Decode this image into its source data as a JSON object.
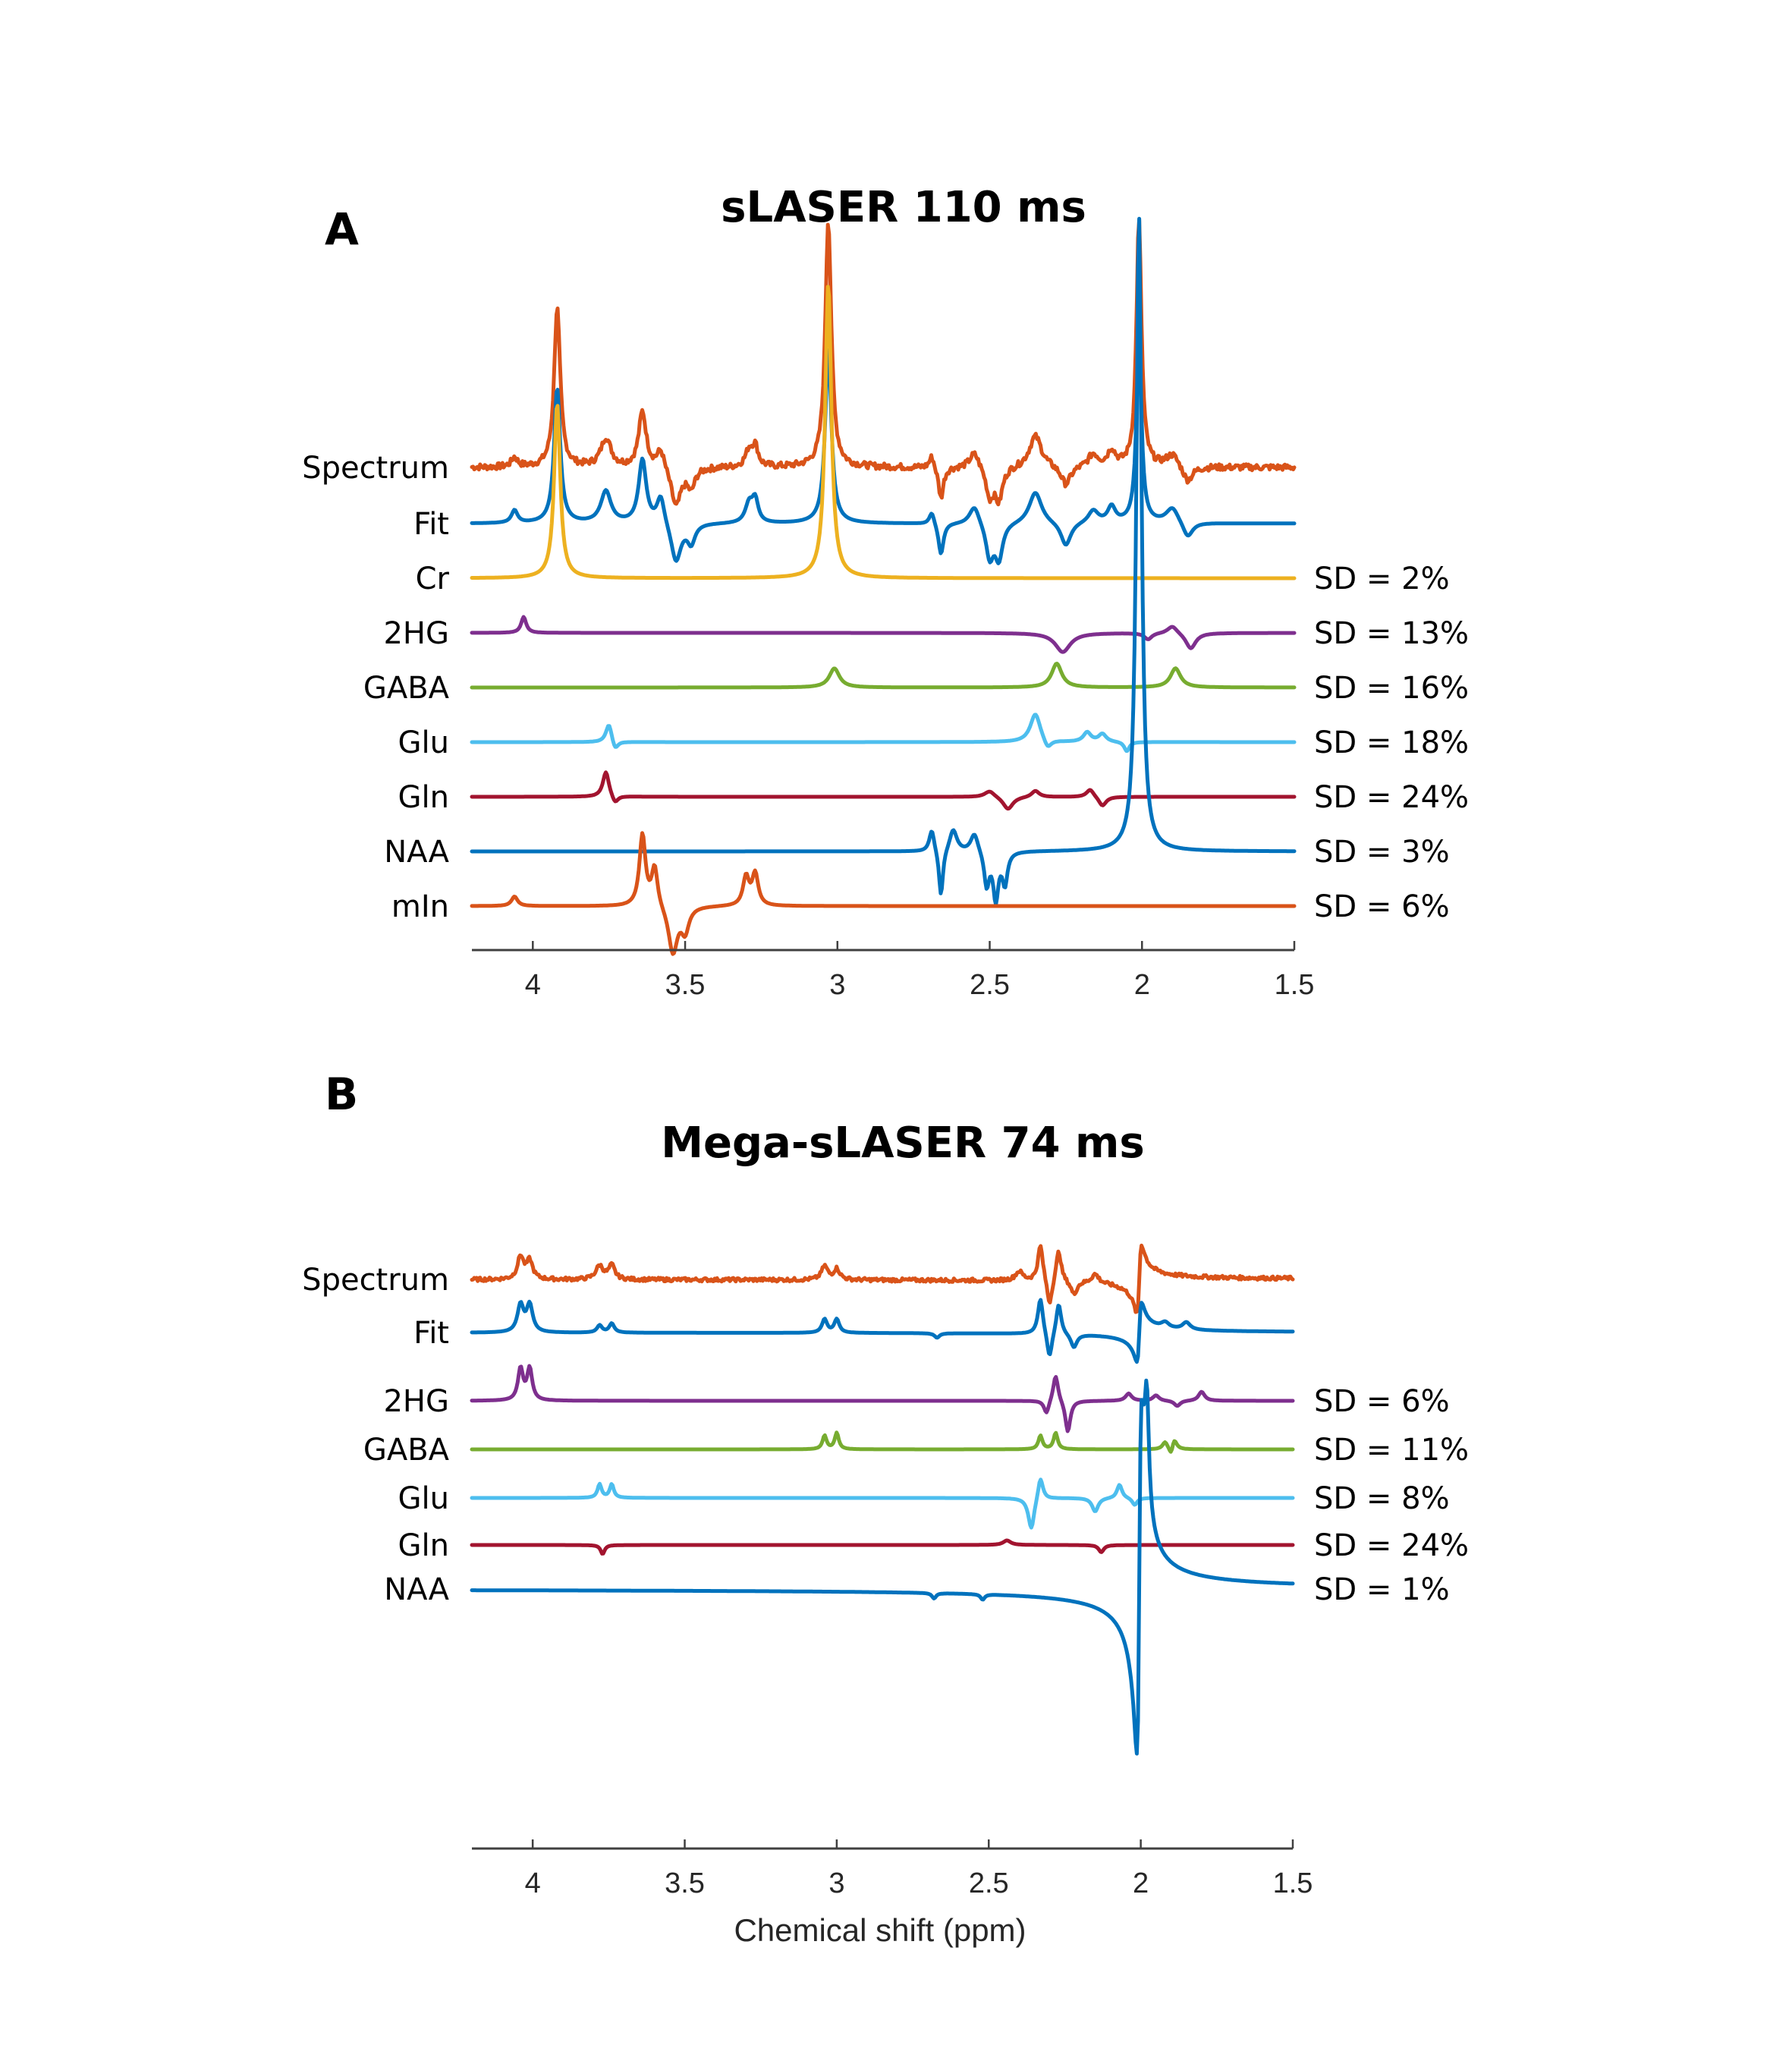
{
  "chart_data": [
    {
      "panel": "A",
      "type": "line",
      "title": "sLASER 110 ms",
      "xlabel": "",
      "xlim": [
        4.2,
        1.5
      ],
      "x_reversed": true,
      "xticks": [
        4,
        3.5,
        3,
        2.5,
        2,
        1.5
      ],
      "xtick_labels": [
        "4",
        "3.5",
        "3",
        "2.5",
        "2",
        "1.5"
      ],
      "grid": false,
      "series": [
        {
          "name": "Spectrum",
          "color": "#D95319",
          "sd": "",
          "noise": true,
          "peaks": [
            [
              4.06,
              0.06,
              0.012
            ],
            [
              3.92,
              1.0,
              0.012
            ],
            [
              3.76,
              0.18,
              0.02
            ],
            [
              3.64,
              0.35,
              0.015
            ],
            [
              3.58,
              0.12,
              0.015
            ],
            [
              3.53,
              -0.25,
              0.02
            ],
            [
              3.48,
              -0.12,
              0.015
            ],
            [
              3.29,
              0.1,
              0.015
            ],
            [
              3.27,
              0.12,
              0.012
            ],
            [
              3.03,
              1.55,
              0.012
            ],
            [
              2.69,
              0.08,
              0.01
            ],
            [
              2.66,
              -0.2,
              0.01
            ],
            [
              2.55,
              0.1,
              0.02
            ],
            [
              2.5,
              -0.18,
              0.015
            ],
            [
              2.47,
              -0.2,
              0.015
            ],
            [
              2.35,
              0.2,
              0.025
            ],
            [
              2.25,
              -0.12,
              0.02
            ],
            [
              2.16,
              0.08,
              0.02
            ],
            [
              2.1,
              0.1,
              0.015
            ],
            [
              2.01,
              1.55,
              0.01
            ],
            [
              1.9,
              0.08,
              0.025
            ],
            [
              1.85,
              -0.1,
              0.02
            ]
          ]
        },
        {
          "name": "Fit",
          "color": "#0072BD",
          "sd": "",
          "noise": false,
          "peaks": [
            [
              4.06,
              0.08,
              0.012
            ],
            [
              3.92,
              0.85,
              0.012
            ],
            [
              3.76,
              0.2,
              0.02
            ],
            [
              3.64,
              0.4,
              0.015
            ],
            [
              3.58,
              0.18,
              0.015
            ],
            [
              3.53,
              -0.25,
              0.02
            ],
            [
              3.48,
              -0.12,
              0.015
            ],
            [
              3.29,
              0.12,
              0.015
            ],
            [
              3.27,
              0.14,
              0.012
            ],
            [
              3.03,
              1.1,
              0.012
            ],
            [
              2.69,
              0.08,
              0.01
            ],
            [
              2.66,
              -0.2,
              0.01
            ],
            [
              2.55,
              0.12,
              0.02
            ],
            [
              2.5,
              -0.22,
              0.015
            ],
            [
              2.47,
              -0.22,
              0.015
            ],
            [
              2.35,
              0.2,
              0.025
            ],
            [
              2.25,
              -0.15,
              0.02
            ],
            [
              2.16,
              0.08,
              0.02
            ],
            [
              2.1,
              0.1,
              0.015
            ],
            [
              2.01,
              1.15,
              0.01
            ],
            [
              1.9,
              0.1,
              0.025
            ],
            [
              1.85,
              -0.1,
              0.02
            ]
          ]
        },
        {
          "name": "Cr",
          "color": "#EDB120",
          "sd": "SD = 2%",
          "noise": false,
          "peaks": [
            [
              3.92,
              1.1,
              0.012
            ],
            [
              3.03,
              1.85,
              0.012
            ]
          ]
        },
        {
          "name": "2HG",
          "color": "#7E2F8E",
          "sd": "SD = 13%",
          "noise": false,
          "peaks": [
            [
              4.03,
              0.1,
              0.01
            ],
            [
              2.26,
              -0.12,
              0.03
            ],
            [
              1.98,
              -0.04,
              0.015
            ],
            [
              1.9,
              0.05,
              0.02
            ],
            [
              1.84,
              -0.1,
              0.02
            ]
          ]
        },
        {
          "name": "GABA",
          "color": "#77AC30",
          "sd": "SD = 16%",
          "noise": false,
          "peaks": [
            [
              3.01,
              0.12,
              0.02
            ],
            [
              2.28,
              0.15,
              0.02
            ],
            [
              1.89,
              0.12,
              0.02
            ]
          ]
        },
        {
          "name": "Glu",
          "color": "#4DBEEE",
          "sd": "SD = 18%",
          "noise": false,
          "peaks": [
            [
              3.75,
              0.12,
              0.012
            ],
            [
              3.73,
              -0.06,
              0.012
            ],
            [
              2.35,
              0.18,
              0.02
            ],
            [
              2.31,
              -0.06,
              0.015
            ],
            [
              2.18,
              0.06,
              0.015
            ],
            [
              2.13,
              0.05,
              0.015
            ],
            [
              2.05,
              -0.06,
              0.01
            ]
          ]
        },
        {
          "name": "Gln",
          "color": "#A2142F",
          "sd": "SD = 24%",
          "noise": false,
          "peaks": [
            [
              3.76,
              0.16,
              0.012
            ],
            [
              3.73,
              -0.05,
              0.012
            ],
            [
              2.5,
              0.04,
              0.02
            ],
            [
              2.44,
              -0.08,
              0.02
            ],
            [
              2.35,
              0.04,
              0.015
            ],
            [
              2.17,
              0.05,
              0.015
            ],
            [
              2.13,
              -0.06,
              0.015
            ]
          ]
        },
        {
          "name": "NAA",
          "color": "#0072BD",
          "sd": "SD = 3%",
          "noise": false,
          "peaks": [
            [
              2.69,
              0.14,
              0.01
            ],
            [
              2.66,
              -0.3,
              0.008
            ],
            [
              2.62,
              0.14,
              0.015
            ],
            [
              2.55,
              0.12,
              0.015
            ],
            [
              2.51,
              -0.22,
              0.01
            ],
            [
              2.48,
              -0.3,
              0.01
            ],
            [
              2.45,
              -0.2,
              0.01
            ],
            [
              2.01,
              4.0,
              0.01
            ]
          ]
        },
        {
          "name": "mIn",
          "color": "#D95319",
          "sd": "SD = 6%",
          "noise": false,
          "peaks": [
            [
              4.06,
              0.06,
              0.012
            ],
            [
              3.64,
              0.45,
              0.012
            ],
            [
              3.6,
              0.25,
              0.012
            ],
            [
              3.54,
              -0.3,
              0.018
            ],
            [
              3.5,
              -0.15,
              0.015
            ],
            [
              3.3,
              0.18,
              0.012
            ],
            [
              3.27,
              0.2,
              0.012
            ]
          ]
        }
      ]
    },
    {
      "panel": "B",
      "type": "line",
      "title": "Mega-sLASER 74 ms",
      "xlabel": "Chemical shift (ppm)",
      "xlim": [
        4.2,
        1.5
      ],
      "x_reversed": true,
      "xticks": [
        4,
        3.5,
        3,
        2.5,
        2,
        1.5
      ],
      "xtick_labels": [
        "4",
        "3.5",
        "3",
        "2.5",
        "2",
        "1.5"
      ],
      "grid": false,
      "series": [
        {
          "name": "Spectrum",
          "color": "#D95319",
          "sd": "",
          "noise": true,
          "dispersion": [
            2.005,
            1.5,
            0.008
          ],
          "peaks": [
            [
              4.04,
              0.25,
              0.012
            ],
            [
              4.01,
              0.2,
              0.012
            ],
            [
              3.78,
              0.15,
              0.015
            ],
            [
              3.74,
              0.15,
              0.012
            ],
            [
              3.04,
              0.15,
              0.012
            ],
            [
              3.0,
              0.12,
              0.012
            ],
            [
              2.4,
              0.1,
              0.015
            ],
            [
              2.33,
              0.4,
              0.01
            ],
            [
              2.27,
              0.35,
              0.01
            ],
            [
              2.3,
              -0.3,
              0.01
            ],
            [
              2.22,
              -0.15,
              0.012
            ],
            [
              2.15,
              0.1,
              0.015
            ]
          ]
        },
        {
          "name": "Fit",
          "color": "#0072BD",
          "sd": "",
          "noise": false,
          "dispersion": [
            2.005,
            1.3,
            0.008
          ],
          "peaks": [
            [
              4.04,
              0.3,
              0.012
            ],
            [
              4.01,
              0.3,
              0.012
            ],
            [
              3.78,
              0.08,
              0.01
            ],
            [
              3.74,
              0.1,
              0.01
            ],
            [
              3.04,
              0.15,
              0.01
            ],
            [
              3.0,
              0.15,
              0.01
            ],
            [
              2.67,
              -0.05,
              0.01
            ],
            [
              2.33,
              0.4,
              0.01
            ],
            [
              2.27,
              0.35,
              0.01
            ],
            [
              2.3,
              -0.3,
              0.01
            ],
            [
              2.22,
              -0.15,
              0.012
            ],
            [
              1.92,
              0.06,
              0.015
            ],
            [
              1.85,
              0.08,
              0.015
            ]
          ]
        },
        {
          "name": "2HG",
          "color": "#7E2F8E",
          "sd": "SD = 6%",
          "noise": false,
          "peaks": [
            [
              4.04,
              0.35,
              0.01
            ],
            [
              4.01,
              0.35,
              0.01
            ],
            [
              2.28,
              0.3,
              0.01
            ],
            [
              2.24,
              -0.35,
              0.01
            ],
            [
              2.31,
              -0.15,
              0.01
            ],
            [
              2.04,
              0.08,
              0.012
            ],
            [
              1.95,
              0.06,
              0.012
            ],
            [
              1.88,
              -0.06,
              0.012
            ],
            [
              1.8,
              0.1,
              0.012
            ]
          ]
        },
        {
          "name": "GABA",
          "color": "#77AC30",
          "sd": "SD = 11%",
          "noise": false,
          "peaks": [
            [
              3.04,
              0.15,
              0.008
            ],
            [
              3.0,
              0.18,
              0.008
            ],
            [
              2.33,
              0.15,
              0.008
            ],
            [
              2.28,
              0.18,
              0.008
            ],
            [
              1.92,
              0.08,
              0.01
            ],
            [
              1.89,
              0.12,
              0.01
            ],
            [
              1.9,
              -0.1,
              0.008
            ]
          ]
        },
        {
          "name": "Glu",
          "color": "#4DBEEE",
          "sd": "SD = 8%",
          "noise": false,
          "peaks": [
            [
              3.78,
              0.15,
              0.008
            ],
            [
              3.74,
              0.15,
              0.008
            ],
            [
              2.36,
              -0.35,
              0.012
            ],
            [
              2.33,
              0.25,
              0.01
            ],
            [
              2.15,
              -0.15,
              0.012
            ],
            [
              2.07,
              0.15,
              0.01
            ],
            [
              2.02,
              -0.08,
              0.01
            ]
          ]
        },
        {
          "name": "Gln",
          "color": "#A2142F",
          "sd": "SD = 24%",
          "noise": false,
          "peaks": [
            [
              3.77,
              -0.1,
              0.008
            ],
            [
              2.44,
              0.05,
              0.015
            ],
            [
              2.13,
              -0.08,
              0.01
            ]
          ]
        },
        {
          "name": "NAA",
          "color": "#0072BD",
          "sd": "SD = 1%",
          "noise": false,
          "dispersion": [
            2.005,
            7.5,
            0.008
          ],
          "peaks": [
            [
              2.68,
              -0.06,
              0.008
            ],
            [
              2.52,
              -0.06,
              0.008
            ],
            [
              1.98,
              1.2,
              0.008
            ]
          ]
        }
      ]
    }
  ]
}
